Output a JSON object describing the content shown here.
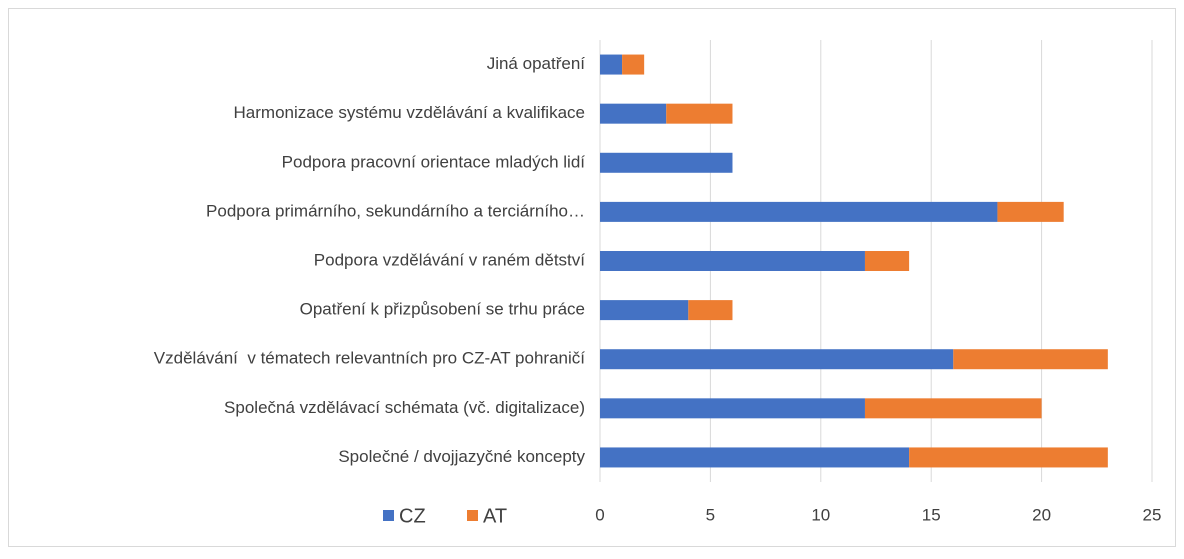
{
  "chart_data": {
    "type": "stacked_barh",
    "categories": [
      "Jiná opatření",
      "Harmonizace systému vzdělávání a kvalifikace",
      "Podpora pracovní orientace mladých lidí",
      "Podpora primárního, sekundárního a terciárního…",
      "Podpora vzdělávání v raném dětství",
      "Opatření k přizpůsobení se trhu práce",
      "Vzdělávání  v tématech relevantních pro CZ-AT pohraničí",
      "Společná vzdělávací schémata (vč. digitalizace)",
      "Společné / dvojjazyčné koncepty"
    ],
    "series": [
      {
        "name": "CZ",
        "color": "#4472c4",
        "values": [
          1,
          3,
          6,
          18,
          12,
          4,
          16,
          12,
          14
        ]
      },
      {
        "name": "AT",
        "color": "#ed7d31",
        "values": [
          1,
          3,
          0,
          3,
          2,
          2,
          7,
          8,
          9
        ]
      }
    ],
    "xlim": [
      0,
      25
    ],
    "xticks": [
      0,
      5,
      10,
      15,
      20,
      25
    ],
    "grid": true,
    "legend": "bottom-left"
  }
}
